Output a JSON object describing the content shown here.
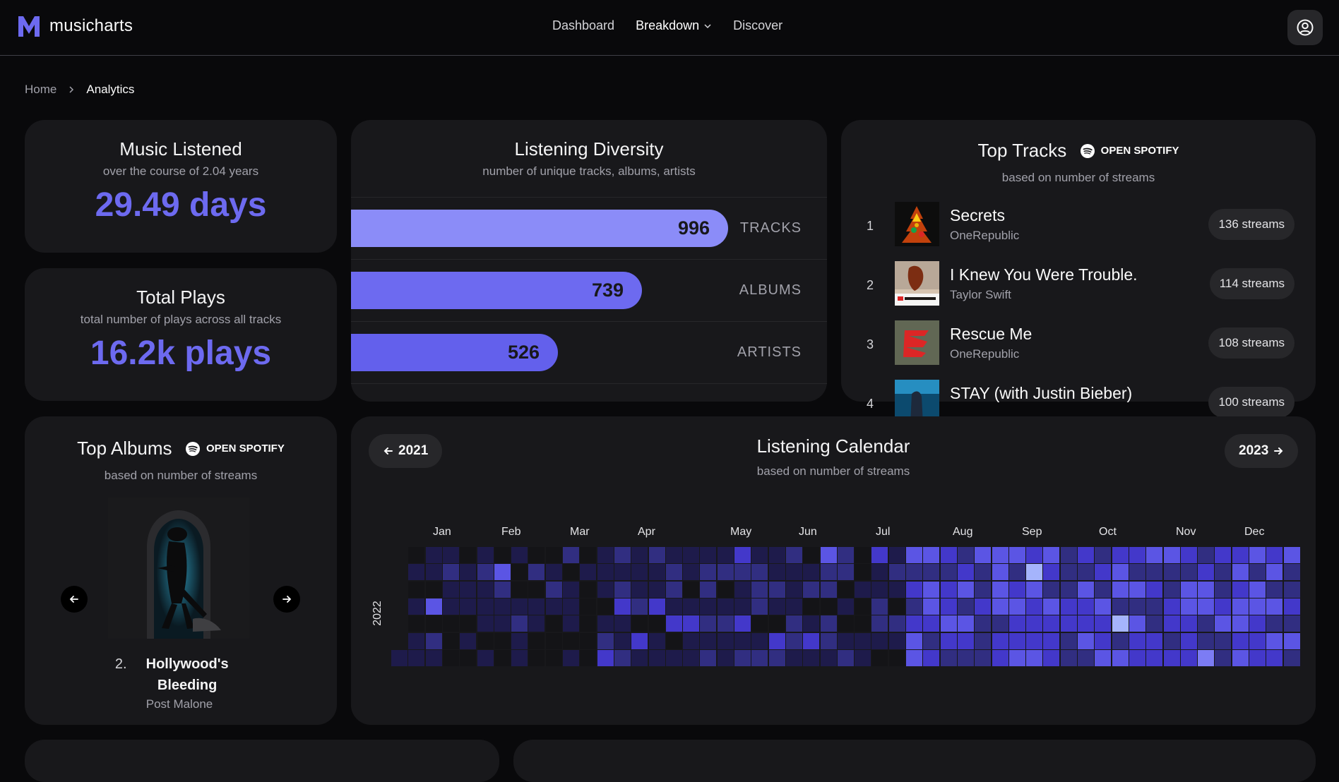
{
  "app": {
    "name": "musicharts"
  },
  "nav": {
    "items": [
      "Dashboard",
      "Breakdown",
      "Discover"
    ]
  },
  "breadcrumb": [
    "Home",
    "Analytics"
  ],
  "music_listened": {
    "title": "Music Listened",
    "subtitle": "over the course of 2.04 years",
    "value": "29.49 days"
  },
  "total_plays": {
    "title": "Total Plays",
    "subtitle": "total number of plays across all tracks",
    "value": "16.2k plays"
  },
  "diversity": {
    "title": "Listening Diversity",
    "subtitle": "number of unique tracks, albums, artists",
    "rows": [
      {
        "label": "TRACKS",
        "value": "996",
        "color": "#8b8cf8"
      },
      {
        "label": "ALBUMS",
        "value": "739",
        "color": "#6d6af0"
      },
      {
        "label": "ARTISTS",
        "value": "526",
        "color": "#6360ec"
      }
    ]
  },
  "top_tracks": {
    "title": "Top Tracks",
    "subtitle": "based on number of streams",
    "spotify_label": "OPEN SPOTIFY",
    "tracks": [
      {
        "rank": "1",
        "name": "Secrets",
        "artist": "OneRepublic",
        "streams": "136 streams"
      },
      {
        "rank": "2",
        "name": "I Knew You Were Trouble.",
        "artist": "Taylor Swift",
        "streams": "114 streams"
      },
      {
        "rank": "3",
        "name": "Rescue Me",
        "artist": "OneRepublic",
        "streams": "108 streams"
      },
      {
        "rank": "4",
        "name": "STAY (with Justin Bieber)",
        "artist": "",
        "streams": "100 streams"
      }
    ]
  },
  "top_albums": {
    "title": "Top Albums",
    "subtitle": "based on number of streams",
    "spotify_label": "OPEN SPOTIFY",
    "current": {
      "rank": "2.",
      "name": "Hollywood's Bleeding",
      "artist": "Post Malone"
    }
  },
  "calendar": {
    "title": "Listening Calendar",
    "subtitle": "based on number of streams",
    "prev_year": "2021",
    "next_year": "2023",
    "year": "2022",
    "months": [
      "Jan",
      "Feb",
      "Mar",
      "Apr",
      "May",
      "Jun",
      "Jul",
      "Aug",
      "Sep",
      "Oct",
      "Nov",
      "Dec"
    ],
    "palette": [
      "#141417",
      "#1e1b4b",
      "#312e81",
      "#4338ca",
      "#5b55e4",
      "#7c7cf4",
      "#a5b4fc"
    ]
  },
  "colors": {
    "accent": "#6d6af0",
    "card": "#18181b",
    "background": "#09090b"
  }
}
